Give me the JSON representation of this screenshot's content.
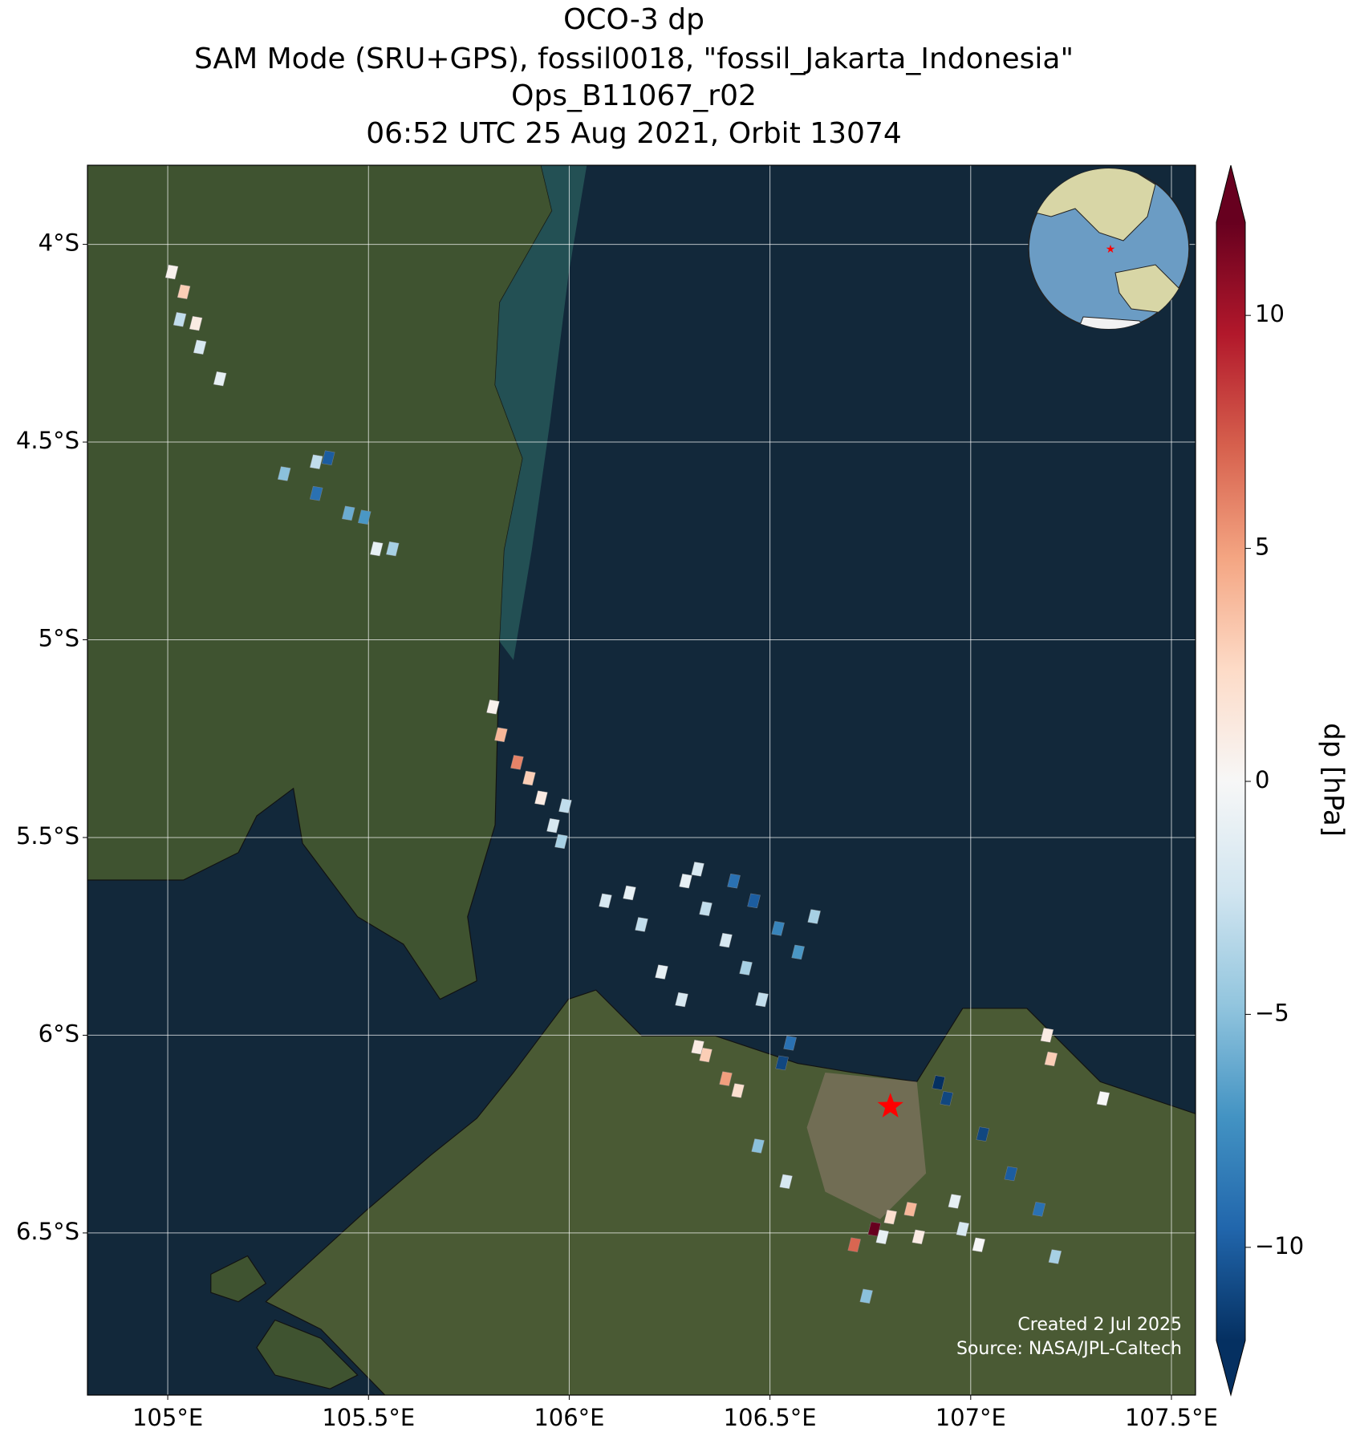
{
  "chart_data": {
    "type": "map",
    "title": [
      "OCO-3 dp",
      "SAM Mode (SRU+GPS), fossil0018, \"fossil_Jakarta_Indonesia\"",
      "Ops_B11067_r02",
      "06:52 UTC 25 Aug 2021, Orbit 13074"
    ],
    "xlim": [
      104.8,
      107.56
    ],
    "ylim": [
      -6.91,
      -3.8
    ],
    "xticks": [
      {
        "value": 105,
        "label": "105°E"
      },
      {
        "value": 105.5,
        "label": "105.5°E"
      },
      {
        "value": 106,
        "label": "106°E"
      },
      {
        "value": 106.5,
        "label": "106.5°E"
      },
      {
        "value": 107,
        "label": "107°E"
      },
      {
        "value": 107.5,
        "label": "107.5°E"
      }
    ],
    "yticks": [
      {
        "value": -4,
        "label": "4°S"
      },
      {
        "value": -4.5,
        "label": "4.5°S"
      },
      {
        "value": -5,
        "label": "5°S"
      },
      {
        "value": -5.5,
        "label": "5.5°S"
      },
      {
        "value": -6,
        "label": "6°S"
      },
      {
        "value": -6.5,
        "label": "6.5°S"
      }
    ],
    "grid": true,
    "colorbar_label": "dp [hPa]",
    "clim": [
      -12,
      12
    ],
    "cticks": [
      {
        "value": -10,
        "label": "−10"
      },
      {
        "value": -5,
        "label": "−5"
      },
      0,
      5,
      10
    ],
    "colormap": [
      "#053061",
      "#2166ac",
      "#4393c3",
      "#92c5de",
      "#d1e5f0",
      "#f7f7f7",
      "#fddbc7",
      "#f4a582",
      "#d6604d",
      "#b2182b",
      "#67001f"
    ],
    "lon": [
      105.01,
      105.04,
      105.03,
      105.07,
      105.08,
      105.13,
      105.29,
      105.37,
      105.37,
      105.45,
      105.49,
      105.52,
      105.56,
      105.4,
      105.81,
      105.83,
      105.87,
      105.9,
      105.93,
      105.96,
      105.98,
      105.99,
      106.09,
      106.15,
      106.18,
      106.23,
      106.28,
      106.29,
      106.34,
      106.39,
      106.44,
      106.48,
      106.32,
      106.41,
      106.46,
      106.52,
      106.57,
      106.61,
      106.34,
      106.39,
      106.42,
      106.32,
      106.53,
      106.55,
      106.94,
      107.03,
      107.1,
      107.17,
      107.21,
      106.92,
      106.8,
      106.85,
      106.87,
      106.78,
      106.71,
      106.76,
      106.96,
      106.98,
      107.02,
      107.19,
      107.2,
      107.33,
      106.47,
      106.54,
      106.74
    ],
    "lat": [
      -4.07,
      -4.12,
      -4.19,
      -4.2,
      -4.26,
      -4.34,
      -4.58,
      -4.55,
      -4.63,
      -4.68,
      -4.69,
      -4.77,
      -4.77,
      -4.54,
      -5.17,
      -5.24,
      -5.31,
      -5.35,
      -5.4,
      -5.47,
      -5.51,
      -5.42,
      -5.66,
      -5.64,
      -5.72,
      -5.84,
      -5.91,
      -5.61,
      -5.68,
      -5.76,
      -5.83,
      -5.91,
      -5.58,
      -5.61,
      -5.66,
      -5.73,
      -5.79,
      -5.7,
      -6.05,
      -6.11,
      -6.14,
      -6.03,
      -6.07,
      -6.02,
      -6.16,
      -6.25,
      -6.35,
      -6.44,
      -6.56,
      -6.12,
      -6.46,
      -6.44,
      -6.51,
      -6.51,
      -6.53,
      -6.49,
      -6.42,
      -6.49,
      -6.53,
      -6.0,
      -6.06,
      -6.16,
      -6.28,
      -6.37,
      -6.66
    ],
    "values": [
      0.5,
      3,
      -3,
      1,
      -2,
      -1,
      -5,
      -3,
      -9,
      -6,
      -7,
      -1,
      -4,
      -10,
      0.5,
      4,
      6,
      3,
      1,
      -2,
      -4,
      -3,
      -2,
      -1,
      -3,
      -1,
      -2,
      -1,
      -3,
      -2,
      -4,
      -3,
      -2,
      -9,
      -10,
      -8,
      -7,
      -4,
      3,
      5,
      2,
      1,
      -11,
      -9,
      -11,
      -11,
      -10,
      -9,
      -4,
      -12,
      2,
      4,
      1,
      -1,
      7,
      12,
      -1,
      -2,
      0,
      1,
      3,
      0,
      -5,
      -2,
      -5
    ],
    "target": {
      "lon": 106.8,
      "lat": -6.18,
      "color": "#ff0000"
    },
    "credit": [
      "Created 2 Jul 2025",
      "Source: NASA/JPL-Caltech"
    ]
  }
}
